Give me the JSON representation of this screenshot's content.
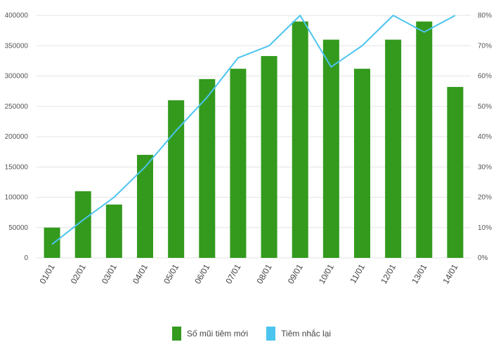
{
  "chart_data": {
    "type": "bar",
    "categories": [
      "01/01",
      "02/01",
      "03/01",
      "04/01",
      "05/01",
      "06/01",
      "07/01",
      "08/01",
      "09/01",
      "10/01",
      "11/01",
      "12/01",
      "13/01",
      "14/01"
    ],
    "series": [
      {
        "name": "Số mũi tiêm mới",
        "type": "bar",
        "axis": "left",
        "color": "#339a1e",
        "values": [
          50000,
          110000,
          88000,
          170000,
          260000,
          295000,
          312000,
          333000,
          390000,
          360000,
          312000,
          360000,
          390000,
          282000
        ]
      },
      {
        "name": "Tiêm nhắc lại",
        "type": "line",
        "axis": "right",
        "color": "#4cc4f0",
        "values": [
          4.5,
          12.5,
          20,
          30,
          42,
          53,
          66,
          70,
          80,
          63,
          70,
          80,
          74.5,
          80
        ]
      }
    ],
    "left_axis": {
      "ylim": [
        0,
        400000
      ],
      "ticks": [
        "0",
        "50000",
        "100000",
        "150000",
        "200000",
        "250000",
        "300000",
        "350000",
        "400000"
      ]
    },
    "right_axis": {
      "ylim": [
        0,
        80
      ],
      "ticks": [
        "0%",
        "10%",
        "20%",
        "30%",
        "40%",
        "50%",
        "60%",
        "70%",
        "80%"
      ]
    },
    "grid": true,
    "legend_position": "bottom"
  }
}
